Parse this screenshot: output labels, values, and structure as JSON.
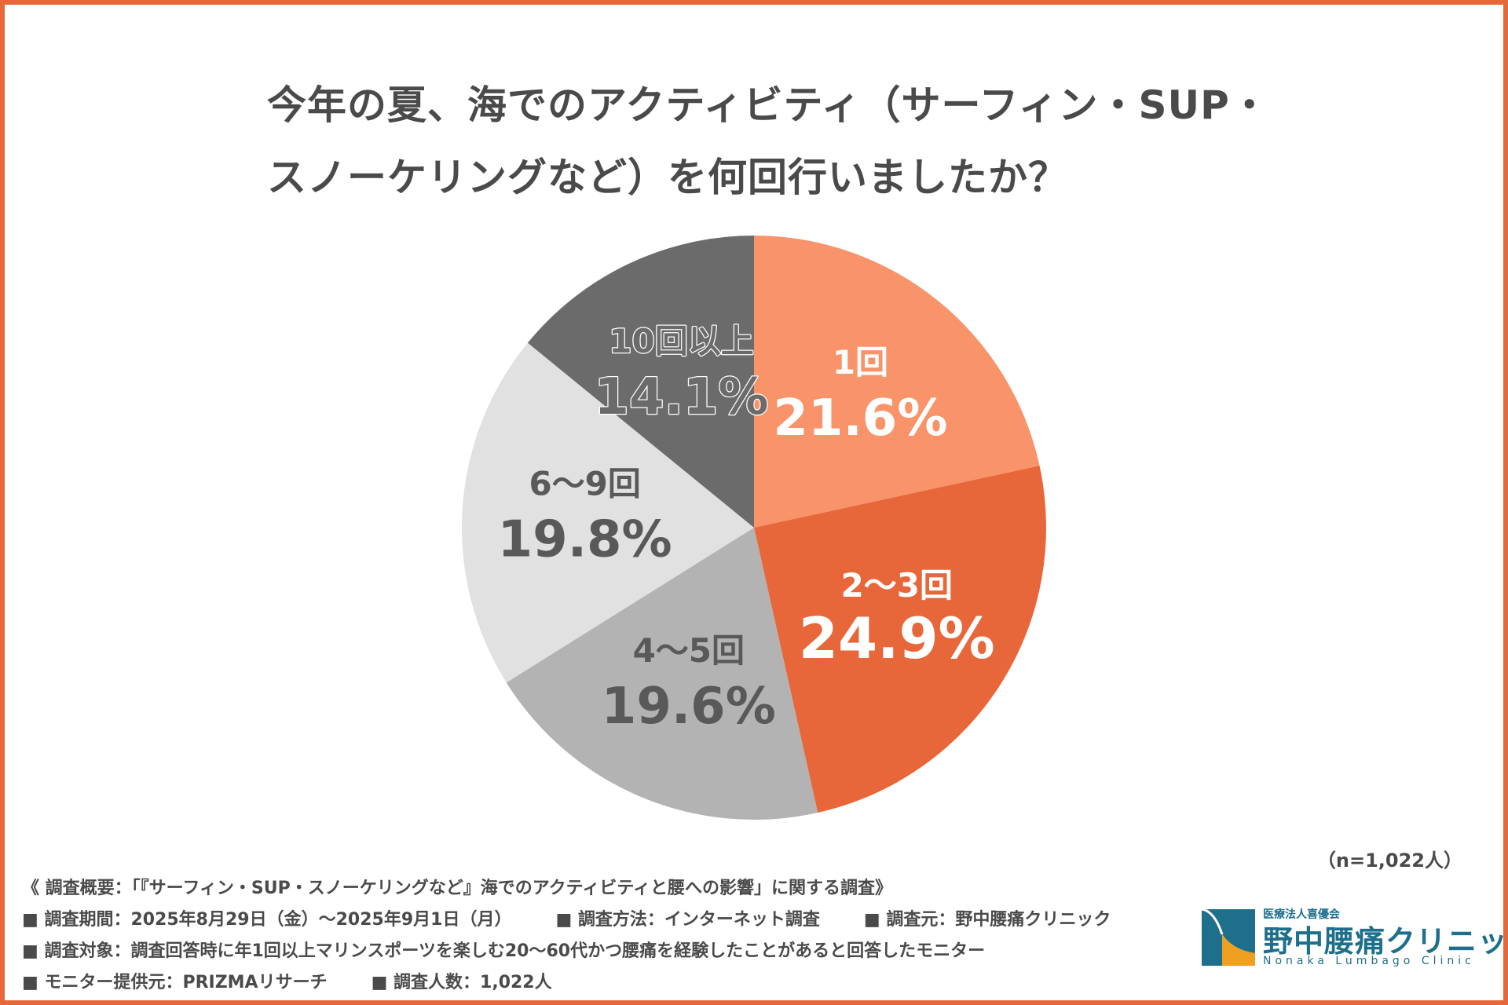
{
  "title_line1": "今年の夏、海でのアクティビティ（サーフィン・SUP・",
  "title_line2": "スノーケリングなど）を何回行いましたか？",
  "chart_data": {
    "type": "pie",
    "title": "今年の夏、海でのアクティビティ（サーフィン・SUP・スノーケリングなど）を何回行いましたか？",
    "slices": [
      {
        "label": "1回",
        "value": 21.6,
        "display": "21.6%",
        "color": "#f8936a",
        "text_color": "#ffffff"
      },
      {
        "label": "2〜3回",
        "value": 24.9,
        "display": "24.9%",
        "color": "#e8673a",
        "text_color": "#ffffff"
      },
      {
        "label": "4〜5回",
        "value": 19.6,
        "display": "19.6%",
        "color": "#b3b3b3",
        "text_color": "#595959"
      },
      {
        "label": "6〜9回",
        "value": 19.8,
        "display": "19.8%",
        "color": "#e1e1e1",
        "text_color": "#595959"
      },
      {
        "label": "10回以上",
        "value": 14.1,
        "display": "14.1%",
        "color": "#6b6b6b",
        "text_color": "#6b6b6b",
        "outlined": true
      }
    ],
    "start": "12 o'clock",
    "direction": "clockwise"
  },
  "sample_note": "（n=1,022人）",
  "notes": {
    "summary": "《 調査概要：「『サーフィン・SUP・スノーケリングなど』海でのアクティビティと腰への影響」に関する調査》",
    "period": "■ 調査期間：2025年8月29日（金）〜2025年9月1日（月）",
    "method": "■ 調査方法：インターネット調査",
    "source": "■ 調査元：野中腰痛クリニック",
    "target": "■ 調査対象：調査回答時に年1回以上マリンスポーツを楽しむ20〜60代かつ腰痛を経験したことがあると回答したモニター",
    "provider": "■ モニター提供元：PRIZMAリサーチ",
    "count": "■ 調査人数：1,022人"
  },
  "logo": {
    "prefix": "医療法人喜優会",
    "name": "野中腰痛クリニック",
    "english": "Nonaka Lumbago Clinic",
    "color": "#1e6f8c",
    "accent": "#f0a020"
  }
}
